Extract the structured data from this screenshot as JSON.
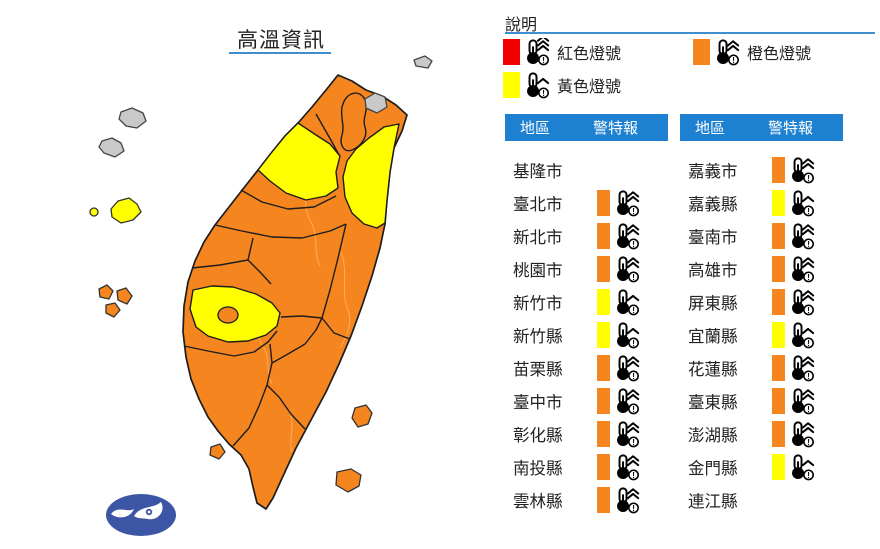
{
  "title": "高溫資訊",
  "legend": {
    "heading": "說明",
    "items": [
      {
        "label": "紅色燈號",
        "level": 3
      },
      {
        "label": "橙色燈號",
        "level": 2
      },
      {
        "label": "黃色燈號",
        "level": 1
      }
    ]
  },
  "table": {
    "headers": {
      "region": "地區",
      "warning": "警特報"
    },
    "left_rows": [
      {
        "name": "基隆市",
        "level": 0
      },
      {
        "name": "臺北市",
        "level": 2
      },
      {
        "name": "新北市",
        "level": 2
      },
      {
        "name": "桃園市",
        "level": 2
      },
      {
        "name": "新竹市",
        "level": 1
      },
      {
        "name": "新竹縣",
        "level": 1
      },
      {
        "name": "苗栗縣",
        "level": 2
      },
      {
        "name": "臺中市",
        "level": 2
      },
      {
        "name": "彰化縣",
        "level": 2
      },
      {
        "name": "南投縣",
        "level": 2
      },
      {
        "name": "雲林縣",
        "level": 2
      }
    ],
    "right_rows": [
      {
        "name": "嘉義市",
        "level": 2
      },
      {
        "name": "嘉義縣",
        "level": 1
      },
      {
        "name": "臺南市",
        "level": 2
      },
      {
        "name": "高雄市",
        "level": 2
      },
      {
        "name": "屏東縣",
        "level": 2
      },
      {
        "name": "宜蘭縣",
        "level": 1
      },
      {
        "name": "花蓮縣",
        "level": 2
      },
      {
        "name": "臺東縣",
        "level": 2
      },
      {
        "name": "澎湖縣",
        "level": 2
      },
      {
        "name": "金門縣",
        "level": 1
      },
      {
        "name": "連江縣",
        "level": 0
      }
    ]
  },
  "colors": {
    "red": "#F20000",
    "orange": "#F5861F",
    "yellow": "#FFFF00",
    "none": "#C9C9C9",
    "header_blue": "#1E80D0",
    "underline_blue": "#3E8ED0",
    "logo_navy": "#3C55A4",
    "map_stroke": "#1d1d1d"
  },
  "map": {
    "regions": [
      {
        "id": "taiwan-main",
        "label": "臺灣本島",
        "level": "orange"
      },
      {
        "id": "hsinchu-area",
        "label": "新竹縣市",
        "level": "yellow"
      },
      {
        "id": "yilan",
        "label": "宜蘭縣",
        "level": "yellow"
      },
      {
        "id": "chiayi-county",
        "label": "嘉義縣",
        "level": "yellow"
      },
      {
        "id": "chiayi-city",
        "label": "嘉義市",
        "level": "orange"
      },
      {
        "id": "keelung",
        "label": "基隆市",
        "level": "none"
      },
      {
        "id": "keelung-islet",
        "label": "基隆嶼",
        "level": "none"
      },
      {
        "id": "matsu",
        "label": "連江縣",
        "level": "none"
      },
      {
        "id": "kinmen",
        "label": "金門縣",
        "level": "yellow"
      },
      {
        "id": "penghu",
        "label": "澎湖縣",
        "level": "orange"
      },
      {
        "id": "green-island",
        "label": "綠島",
        "level": "orange"
      },
      {
        "id": "orchid-island",
        "label": "蘭嶼",
        "level": "orange"
      },
      {
        "id": "lamay-island",
        "label": "小琉球",
        "level": "orange"
      }
    ]
  }
}
